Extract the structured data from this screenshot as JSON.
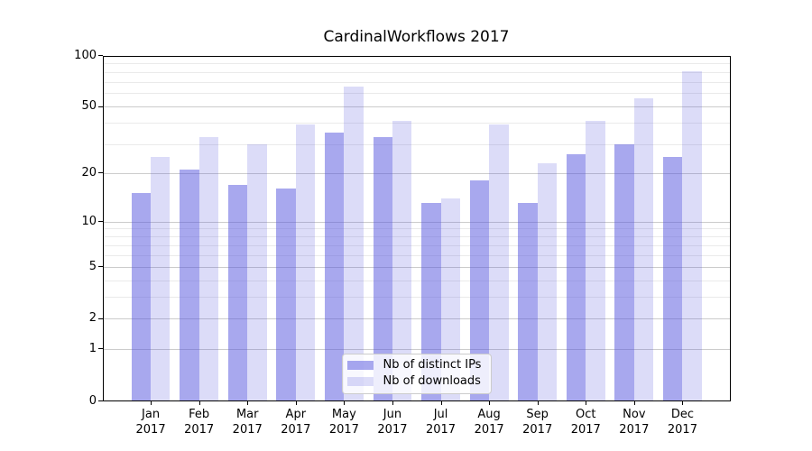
{
  "title": "CardinalWorkflows 2017",
  "colors": {
    "bar_distinct_ips": "rgba(82,82,222,0.5)",
    "bar_downloads": "rgba(82,82,222,0.2)",
    "grid_major": "#cccccc",
    "grid_minor": "#eaeaea",
    "axis_line": "#000000",
    "text": "#000000",
    "legend_border": "#cccccc",
    "legend_background": "rgba(255,255,255,0.8)"
  },
  "chart_data": {
    "type": "bar",
    "title": "CardinalWorkflows 2017",
    "categories": [
      "Jan",
      "Feb",
      "Mar",
      "Apr",
      "May",
      "Jun",
      "Jul",
      "Aug",
      "Sep",
      "Oct",
      "Nov",
      "Dec"
    ],
    "category_year": "2017",
    "series": [
      {
        "name": "Nb of distinct IPs",
        "color_key": "bar_distinct_ips",
        "values": [
          15,
          21,
          17,
          16,
          35,
          33,
          13,
          18,
          13,
          26,
          30,
          25
        ]
      },
      {
        "name": "Nb of downloads",
        "color_key": "bar_downloads",
        "values": [
          25,
          33,
          30,
          39,
          66,
          41,
          14,
          39,
          23,
          41,
          56,
          81
        ]
      }
    ],
    "y_axis": {
      "scale": "log1p",
      "ticks": [
        0,
        1,
        2,
        5,
        10,
        20,
        50,
        100
      ],
      "minor_ticks": [
        3,
        4,
        6,
        7,
        8,
        9,
        30,
        40,
        60,
        70,
        80,
        90
      ],
      "ylim": [
        0,
        100
      ]
    },
    "xlabel": "",
    "ylabel": "",
    "grid": true,
    "legend_position": "lower center"
  }
}
